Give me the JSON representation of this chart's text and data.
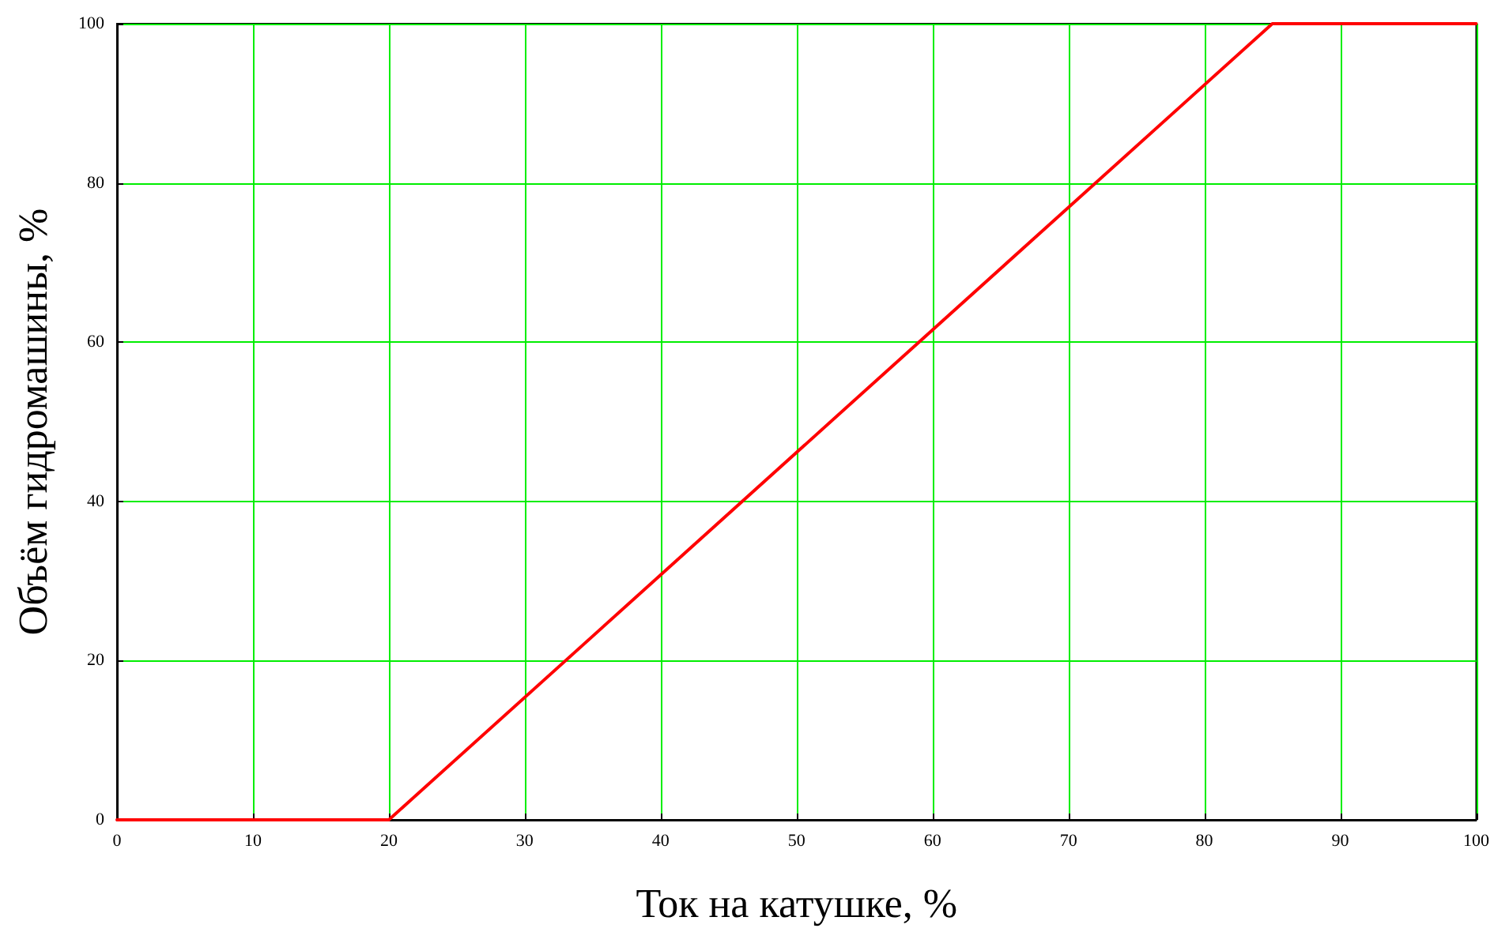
{
  "chart_data": {
    "type": "line",
    "xlabel": "Ток на катушке, %",
    "ylabel": "Объём гидромашины, %",
    "x": [
      0,
      20,
      85,
      100
    ],
    "series": [
      {
        "color": "#ff0000",
        "values": [
          0,
          0,
          100,
          100
        ]
      }
    ],
    "xlim": [
      0,
      100
    ],
    "xticks": [
      0,
      10,
      20,
      30,
      40,
      50,
      60,
      70,
      80,
      90,
      100
    ],
    "ylim": [
      0,
      100
    ],
    "yticks": [
      0,
      20,
      40,
      60,
      80,
      100
    ],
    "grid": true,
    "marker": "none",
    "line_style": "solid"
  }
}
